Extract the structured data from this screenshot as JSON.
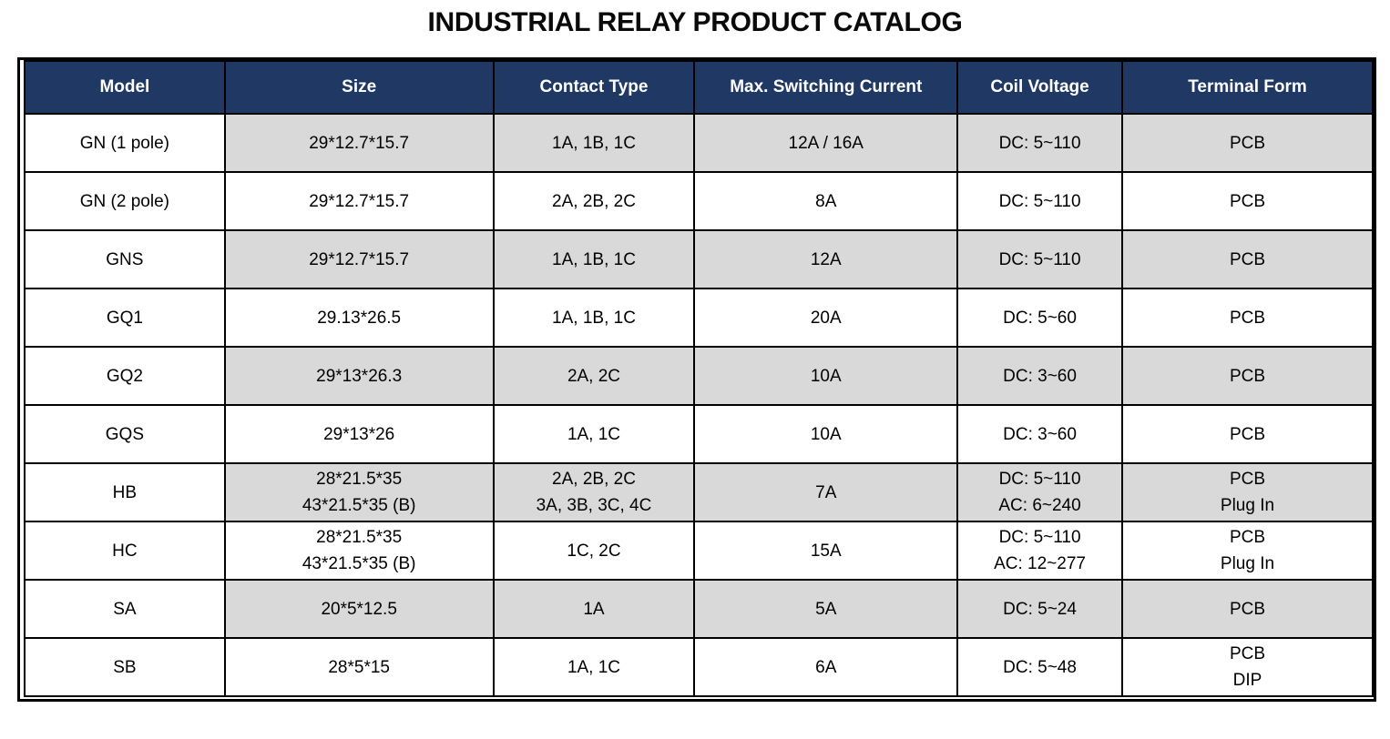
{
  "title": "INDUSTRIAL RELAY PRODUCT CATALOG",
  "table": {
    "columns": [
      "Model",
      "Size",
      "Contact Type",
      "Max. Switching Current",
      "Coil Voltage",
      "Terminal Form"
    ],
    "rows": [
      {
        "shaded": true,
        "model": [
          "GN (1 pole)"
        ],
        "size": [
          "29*12.7*15.7"
        ],
        "contact_type": [
          "1A, 1B, 1C"
        ],
        "max_switching_current": [
          "12A / 16A"
        ],
        "coil_voltage": [
          "DC: 5~110"
        ],
        "terminal_form": [
          "PCB"
        ]
      },
      {
        "shaded": false,
        "model": [
          "GN (2 pole)"
        ],
        "size": [
          "29*12.7*15.7"
        ],
        "contact_type": [
          "2A, 2B, 2C"
        ],
        "max_switching_current": [
          "8A"
        ],
        "coil_voltage": [
          "DC: 5~110"
        ],
        "terminal_form": [
          "PCB"
        ]
      },
      {
        "shaded": true,
        "model": [
          "GNS"
        ],
        "size": [
          "29*12.7*15.7"
        ],
        "contact_type": [
          "1A, 1B, 1C"
        ],
        "max_switching_current": [
          "12A"
        ],
        "coil_voltage": [
          "DC: 5~110"
        ],
        "terminal_form": [
          "PCB"
        ]
      },
      {
        "shaded": false,
        "model": [
          "GQ1"
        ],
        "size": [
          "29.13*26.5"
        ],
        "contact_type": [
          "1A, 1B, 1C"
        ],
        "max_switching_current": [
          "20A"
        ],
        "coil_voltage": [
          "DC: 5~60"
        ],
        "terminal_form": [
          "PCB"
        ]
      },
      {
        "shaded": true,
        "model": [
          "GQ2"
        ],
        "size": [
          "29*13*26.3"
        ],
        "contact_type": [
          "2A, 2C"
        ],
        "max_switching_current": [
          "10A"
        ],
        "coil_voltage": [
          "DC: 3~60"
        ],
        "terminal_form": [
          "PCB"
        ]
      },
      {
        "shaded": false,
        "model": [
          "GQS"
        ],
        "size": [
          "29*13*26"
        ],
        "contact_type": [
          "1A, 1C"
        ],
        "max_switching_current": [
          "10A"
        ],
        "coil_voltage": [
          "DC: 3~60"
        ],
        "terminal_form": [
          "PCB"
        ]
      },
      {
        "shaded": true,
        "model": [
          "HB"
        ],
        "size": [
          "28*21.5*35",
          "43*21.5*35 (B)"
        ],
        "contact_type": [
          "2A, 2B, 2C",
          "3A, 3B, 3C, 4C"
        ],
        "max_switching_current": [
          "7A"
        ],
        "coil_voltage": [
          "DC: 5~110",
          "AC: 6~240"
        ],
        "terminal_form": [
          "PCB",
          "Plug In"
        ]
      },
      {
        "shaded": false,
        "model": [
          "HC"
        ],
        "size": [
          "28*21.5*35",
          "43*21.5*35 (B)"
        ],
        "contact_type": [
          "1C, 2C"
        ],
        "max_switching_current": [
          "15A"
        ],
        "coil_voltage": [
          "DC: 5~110",
          "AC: 12~277"
        ],
        "terminal_form": [
          "PCB",
          "Plug In"
        ]
      },
      {
        "shaded": true,
        "model": [
          "SA"
        ],
        "size": [
          "20*5*12.5"
        ],
        "contact_type": [
          "1A"
        ],
        "max_switching_current": [
          "5A"
        ],
        "coil_voltage": [
          "DC: 5~24"
        ],
        "terminal_form": [
          "PCB"
        ]
      },
      {
        "shaded": false,
        "model": [
          "SB"
        ],
        "size": [
          "28*5*15"
        ],
        "contact_type": [
          "1A, 1C"
        ],
        "max_switching_current": [
          "6A"
        ],
        "coil_voltage": [
          "DC: 5~48"
        ],
        "terminal_form": [
          "PCB",
          "DIP"
        ]
      }
    ]
  },
  "colors": {
    "header_bg": "#1F3864",
    "header_text": "#FFFFFF",
    "row_shade": "#D9D9D9",
    "border": "#000000"
  }
}
